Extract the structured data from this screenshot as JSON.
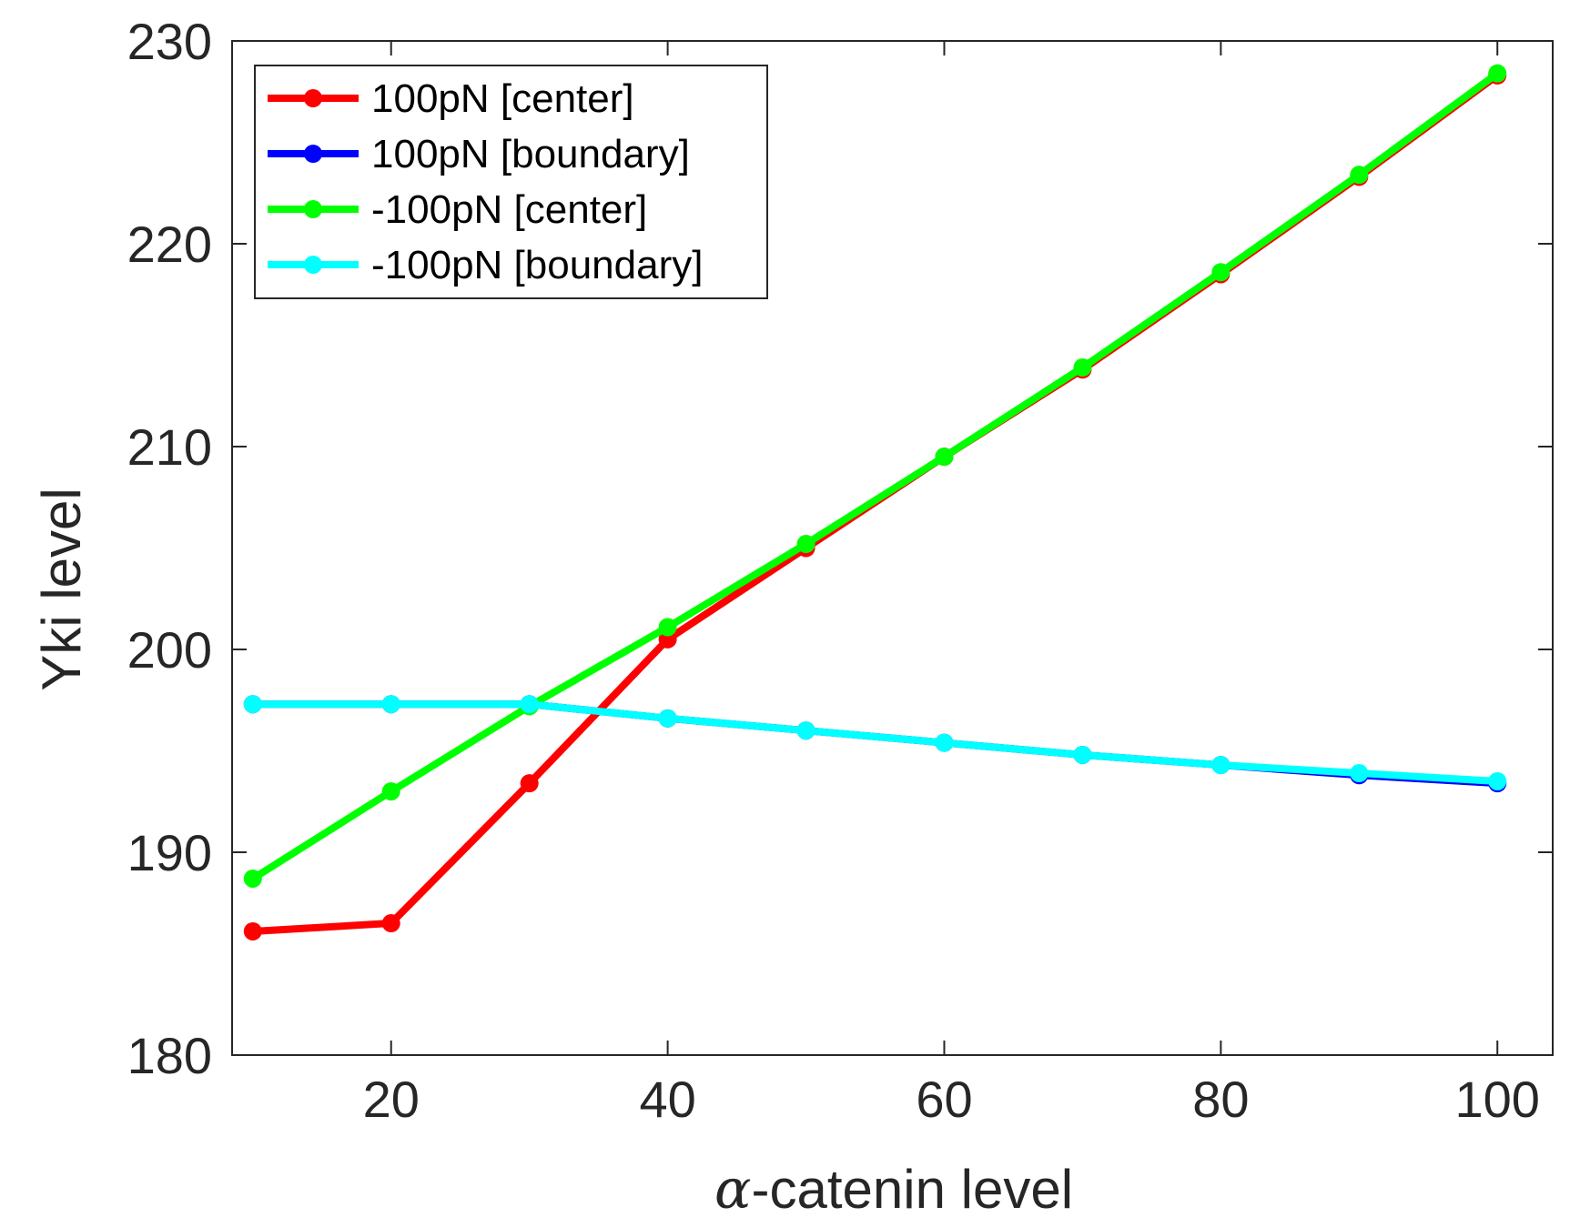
{
  "chart_data": {
    "type": "line",
    "title": "",
    "xlabel": "-catenin level",
    "xlabel_symbol": "α",
    "ylabel": "Yki level",
    "xlim": [
      8.5,
      104
    ],
    "ylim": [
      180,
      230
    ],
    "xticks": [
      20,
      40,
      60,
      80,
      100
    ],
    "yticks": [
      180,
      190,
      200,
      210,
      220,
      230
    ],
    "grid": false,
    "legend_position": "top-left",
    "x": [
      10,
      20,
      30,
      40,
      50,
      60,
      70,
      80,
      90,
      100
    ],
    "series": [
      {
        "name": "100pN [center]",
        "color": "#ff0000",
        "values": [
          186.1,
          186.5,
          193.4,
          200.5,
          205.0,
          209.5,
          213.8,
          218.5,
          223.3,
          228.3
        ]
      },
      {
        "name": "100pN [boundary]",
        "color": "#0000ff",
        "values": [
          197.3,
          197.3,
          197.3,
          196.6,
          196.0,
          195.4,
          194.8,
          194.3,
          193.8,
          193.4
        ]
      },
      {
        "name": "-100pN [center]",
        "color": "#00ff00",
        "values": [
          188.7,
          193.0,
          197.2,
          201.1,
          205.2,
          209.5,
          213.9,
          218.6,
          223.4,
          228.4
        ]
      },
      {
        "name": "-100pN [boundary]",
        "color": "#00ffff",
        "values": [
          197.3,
          197.3,
          197.3,
          196.6,
          196.0,
          195.4,
          194.8,
          194.3,
          193.9,
          193.5
        ]
      }
    ]
  }
}
